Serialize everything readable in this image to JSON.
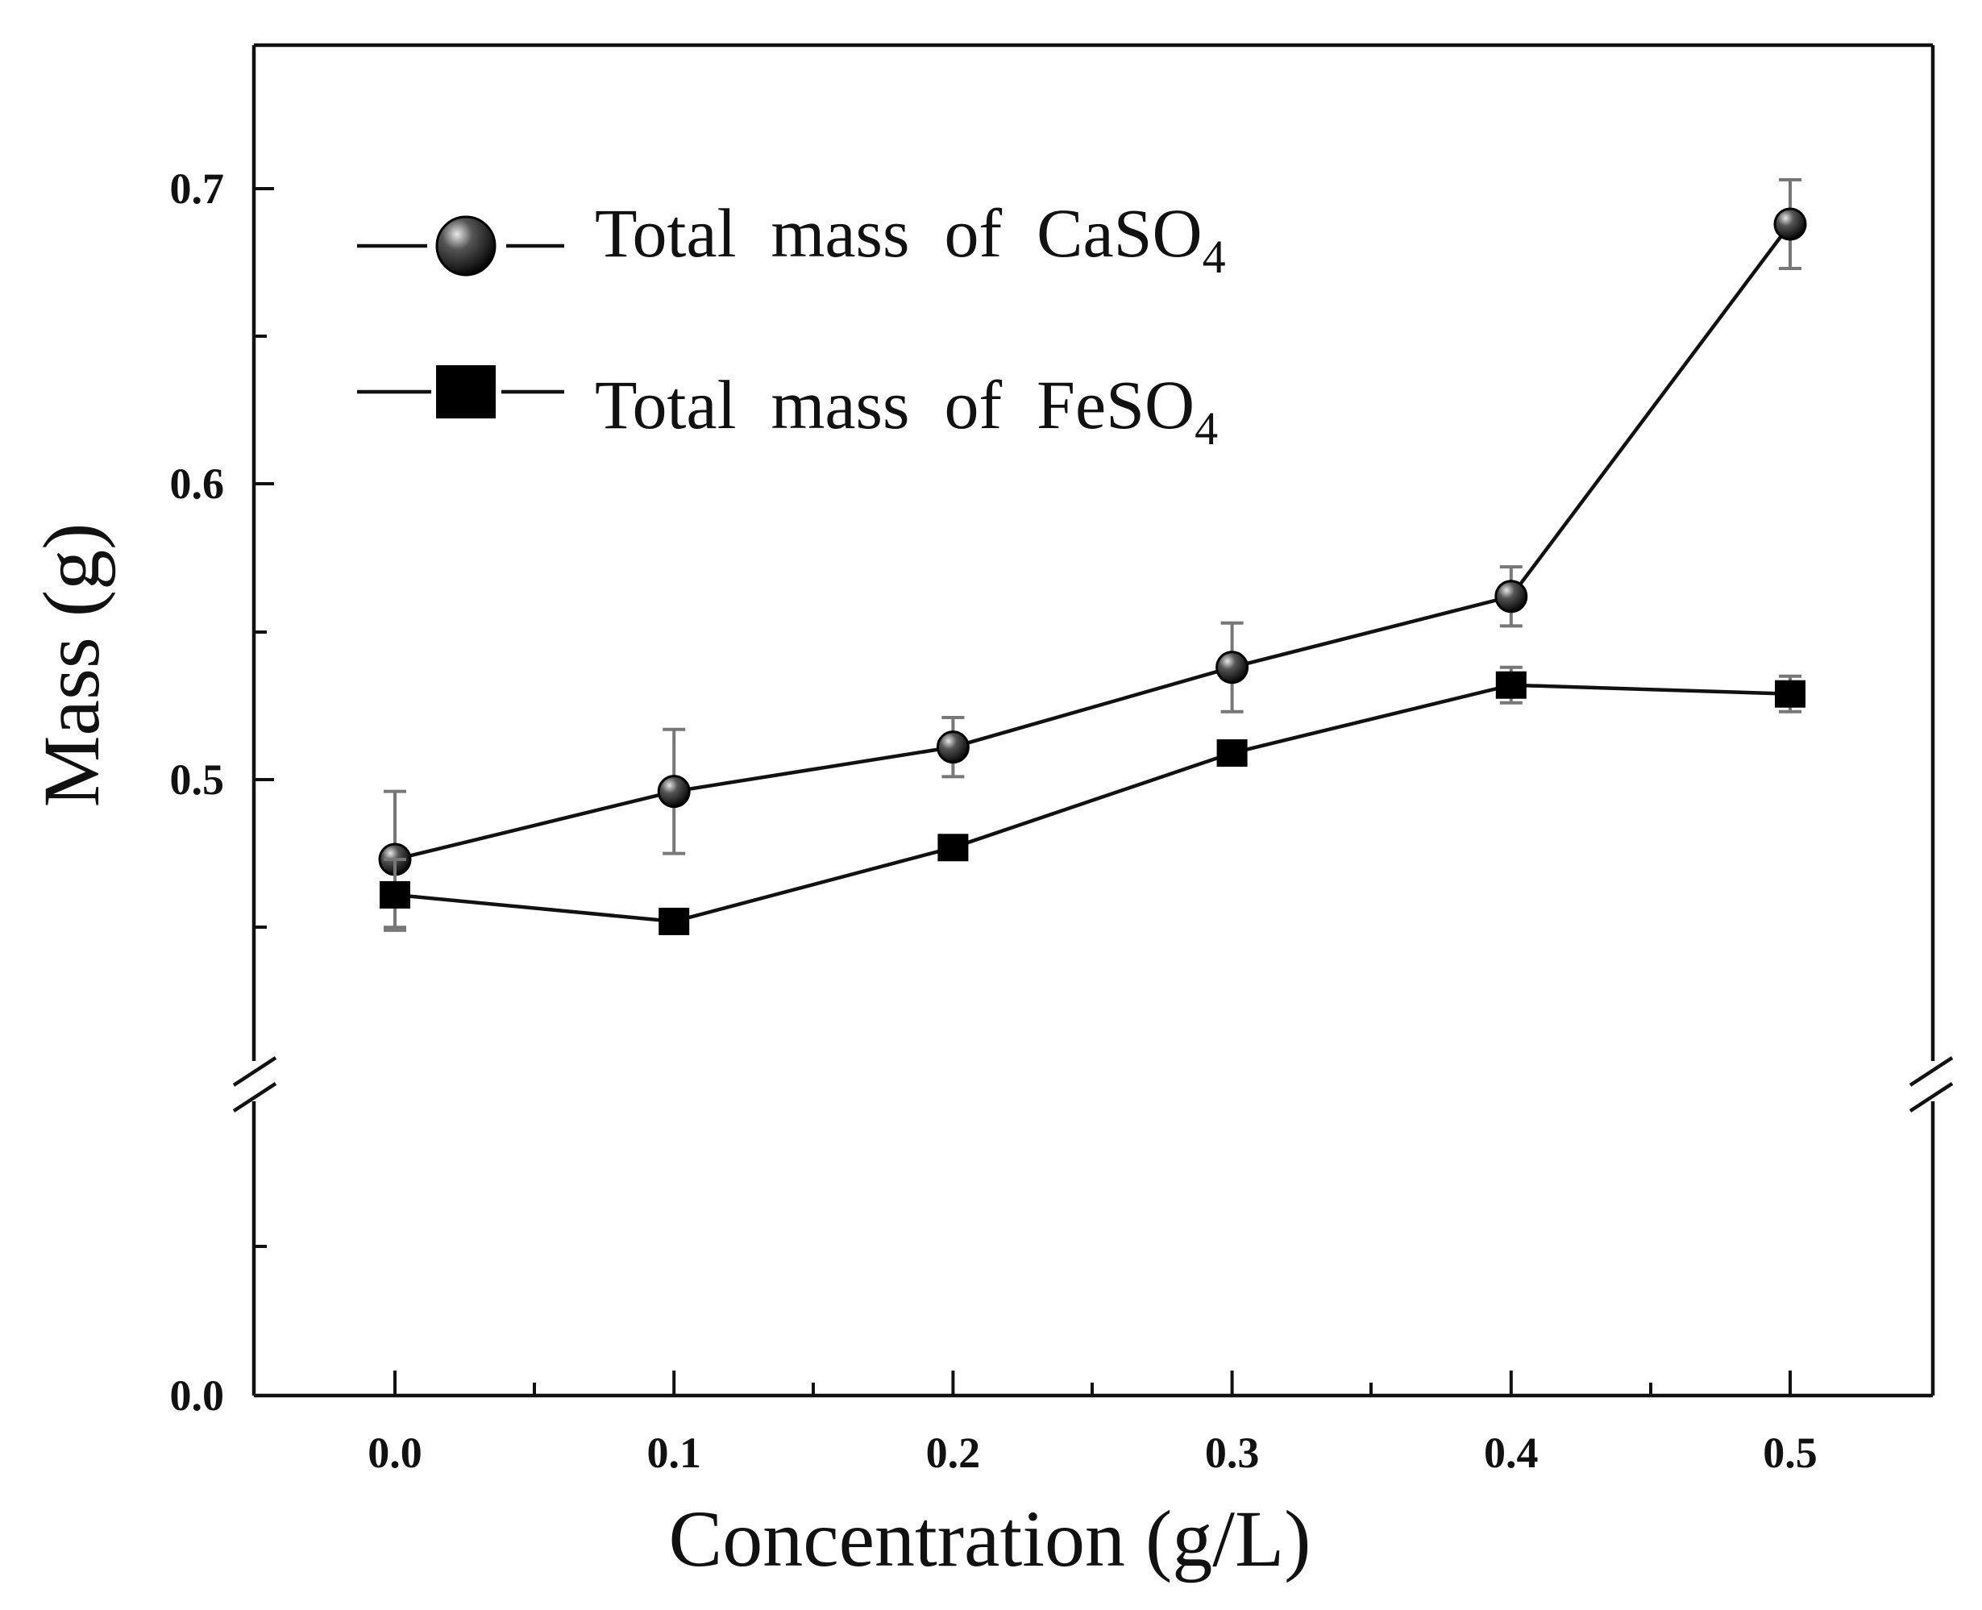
{
  "chart_data": {
    "type": "line",
    "xlabel": "Concentration (g/L)",
    "ylabel": "Mass (g)",
    "xlim": [
      -0.05,
      0.55
    ],
    "x_ticks": [
      "0.0",
      "0.1",
      "0.2",
      "0.3",
      "0.4",
      "0.5"
    ],
    "y_tick_labels": [
      "0.0",
      "0.5",
      "0.6",
      "0.7"
    ],
    "y_break": {
      "lower_range": [
        0.0,
        0.4
      ],
      "upper_range": [
        0.4,
        0.75
      ]
    },
    "legend_position": "top-left",
    "series": [
      {
        "name": "Total mass of CaSO4",
        "legend_main": "Total  mass  of  CaSO",
        "legend_sub": "4",
        "marker": "sphere",
        "x": [
          0.0,
          0.1,
          0.2,
          0.3,
          0.4,
          0.5
        ],
        "values": [
          0.473,
          0.496,
          0.511,
          0.538,
          0.562,
          0.688
        ],
        "errors": [
          0.023,
          0.021,
          0.01,
          0.015,
          0.01,
          0.015
        ]
      },
      {
        "name": "Total mass of FeSO4",
        "legend_main": "Total  mass  of  FeSO",
        "legend_sub": "4",
        "marker": "square",
        "x": [
          0.0,
          0.1,
          0.2,
          0.3,
          0.4,
          0.5
        ],
        "values": [
          0.461,
          0.452,
          0.477,
          0.509,
          0.532,
          0.529
        ],
        "errors": [
          0.012,
          0.002,
          0.002,
          0.004,
          0.006,
          0.006
        ]
      }
    ]
  }
}
